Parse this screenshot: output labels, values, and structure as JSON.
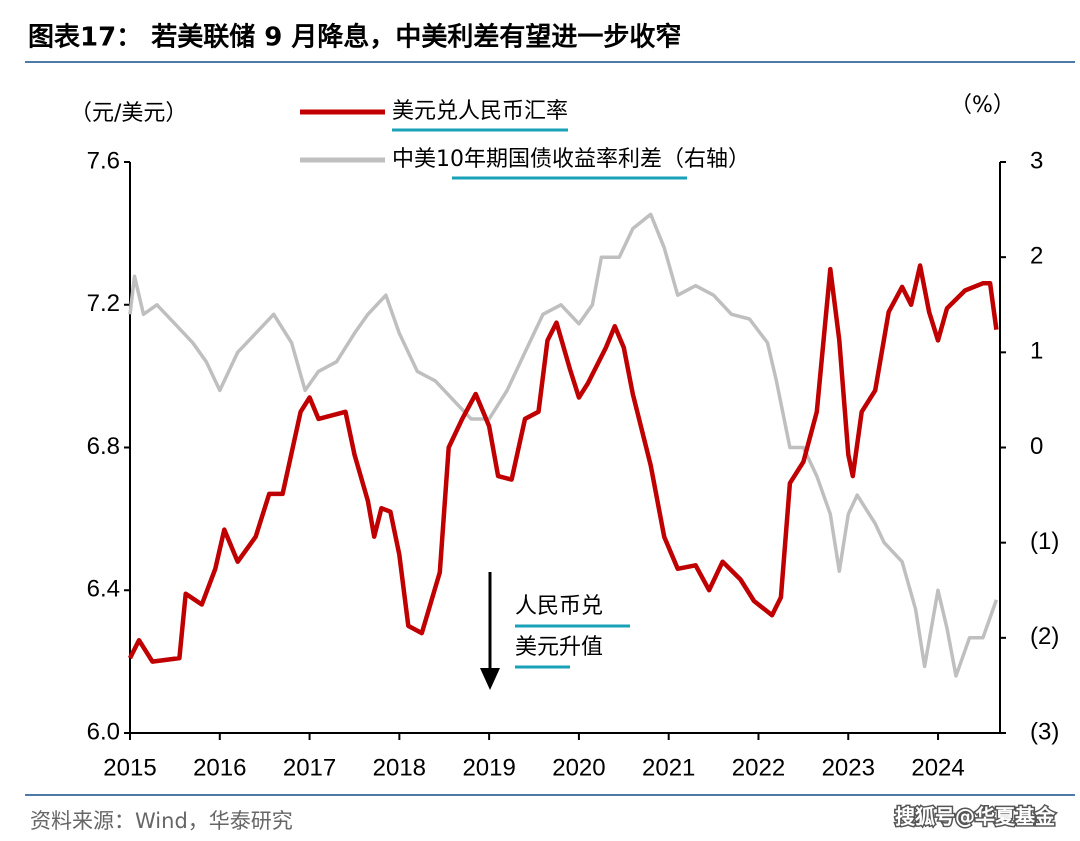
{
  "chart_data": {
    "type": "line",
    "title": "图表17： 若美联储 9 月降息，中美利差有望进一步收窄",
    "y_label": "（元/美元）",
    "y2_label": "（%）",
    "annotation": [
      "人民币兑",
      "美元升值"
    ],
    "source": "资料来源：Wind，华泰研究",
    "watermark": "搜狐号@华夏基金",
    "xlim": [
      2015,
      2024.69
    ],
    "xticks": [
      2015,
      2016,
      2017,
      2018,
      2019,
      2020,
      2021,
      2022,
      2023,
      2024
    ],
    "ylim": [
      6.0,
      7.6
    ],
    "yticks": [
      7.6,
      7.2,
      6.8,
      6.4,
      {
        "value": 6,
        "label": "6.0"
      }
    ],
    "y2lim": [
      -3,
      3
    ],
    "y2ticks": [
      3,
      2,
      1,
      0,
      {
        "value": -1,
        "label": "(1)"
      },
      {
        "value": -2,
        "label": "(2)"
      },
      {
        "value": -3,
        "label": "(3)"
      }
    ],
    "grid": false,
    "series": [
      {
        "name": "美元兑人民币汇率",
        "color": "#c00000",
        "x": [
          2015.0,
          2015.1,
          2015.25,
          2015.55,
          2015.62,
          2015.8,
          2015.95,
          2016.05,
          2016.2,
          2016.4,
          2016.55,
          2016.7,
          2016.9,
          2017.0,
          2017.1,
          2017.4,
          2017.5,
          2017.65,
          2017.72,
          2017.8,
          2017.9,
          2018.0,
          2018.1,
          2018.25,
          2018.45,
          2018.55,
          2018.7,
          2018.85,
          2019.0,
          2019.1,
          2019.25,
          2019.4,
          2019.55,
          2019.65,
          2019.75,
          2019.9,
          2020.0,
          2020.1,
          2020.3,
          2020.4,
          2020.5,
          2020.6,
          2020.8,
          2020.95,
          2021.1,
          2021.3,
          2021.45,
          2021.6,
          2021.8,
          2021.95,
          2022.15,
          2022.25,
          2022.35,
          2022.5,
          2022.65,
          2022.8,
          2022.9,
          2023.0,
          2023.05,
          2023.15,
          2023.3,
          2023.45,
          2023.6,
          2023.7,
          2023.8,
          2023.9,
          2024.0,
          2024.1,
          2024.3,
          2024.5,
          2024.58,
          2024.65
        ],
        "values": [
          6.21,
          6.26,
          6.2,
          6.21,
          6.39,
          6.36,
          6.46,
          6.57,
          6.48,
          6.55,
          6.67,
          6.67,
          6.9,
          6.94,
          6.88,
          6.9,
          6.78,
          6.65,
          6.55,
          6.63,
          6.62,
          6.5,
          6.3,
          6.28,
          6.45,
          6.8,
          6.88,
          6.95,
          6.86,
          6.72,
          6.71,
          6.88,
          6.9,
          7.1,
          7.15,
          7.02,
          6.94,
          6.98,
          7.08,
          7.14,
          7.08,
          6.95,
          6.75,
          6.55,
          6.46,
          6.47,
          6.4,
          6.48,
          6.43,
          6.37,
          6.33,
          6.38,
          6.7,
          6.76,
          6.9,
          7.3,
          7.1,
          6.78,
          6.72,
          6.9,
          6.96,
          7.18,
          7.25,
          7.2,
          7.31,
          7.18,
          7.1,
          7.19,
          7.24,
          7.26,
          7.26,
          7.13
        ]
      },
      {
        "name": "中美10年期国债收益率利差（右轴）",
        "color": "#bfbfbf",
        "axis": "y2",
        "x": [
          2015.0,
          2015.05,
          2015.15,
          2015.3,
          2015.5,
          2015.7,
          2015.85,
          2016.0,
          2016.2,
          2016.4,
          2016.6,
          2016.8,
          2016.95,
          2017.1,
          2017.3,
          2017.5,
          2017.65,
          2017.85,
          2018.0,
          2018.2,
          2018.4,
          2018.6,
          2018.8,
          2019.0,
          2019.2,
          2019.4,
          2019.6,
          2019.8,
          2020.0,
          2020.15,
          2020.25,
          2020.45,
          2020.6,
          2020.8,
          2020.95,
          2021.1,
          2021.3,
          2021.5,
          2021.7,
          2021.9,
          2022.1,
          2022.2,
          2022.35,
          2022.5,
          2022.65,
          2022.8,
          2022.9,
          2023.0,
          2023.1,
          2023.3,
          2023.4,
          2023.6,
          2023.75,
          2023.85,
          2024.0,
          2024.1,
          2024.2,
          2024.35,
          2024.5,
          2024.65
        ],
        "values": [
          1.4,
          1.8,
          1.4,
          1.5,
          1.3,
          1.1,
          0.9,
          0.6,
          1.0,
          1.2,
          1.4,
          1.1,
          0.6,
          0.8,
          0.9,
          1.2,
          1.4,
          1.6,
          1.2,
          0.8,
          0.7,
          0.5,
          0.3,
          0.3,
          0.6,
          1.0,
          1.4,
          1.5,
          1.3,
          1.5,
          2.0,
          2.0,
          2.3,
          2.45,
          2.1,
          1.6,
          1.7,
          1.6,
          1.4,
          1.35,
          1.1,
          0.7,
          0.0,
          0.0,
          -0.3,
          -0.7,
          -1.3,
          -0.7,
          -0.5,
          -0.8,
          -1.0,
          -1.2,
          -1.7,
          -2.3,
          -1.5,
          -1.9,
          -2.4,
          -2.0,
          -2.0,
          -1.6
        ]
      }
    ]
  }
}
